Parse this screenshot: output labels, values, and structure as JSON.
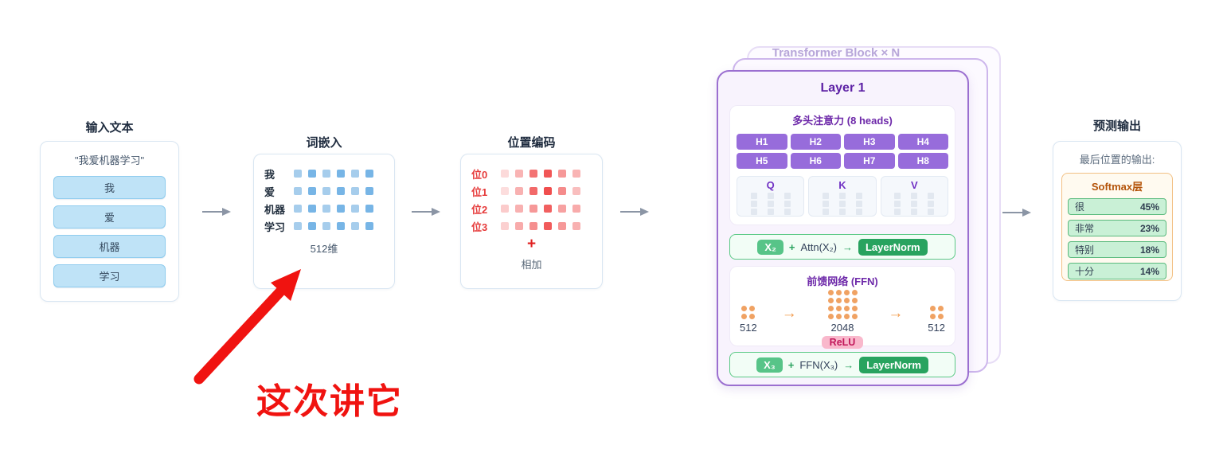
{
  "panels": {
    "input": {
      "title": "输入文本",
      "sentence": "\"我爱机器学习\"",
      "tokens": [
        "我",
        "爱",
        "机器",
        "学习"
      ]
    },
    "embedding": {
      "title": "词嵌入",
      "tokens": [
        "我",
        "爱",
        "机器",
        "学习"
      ],
      "cols": 6,
      "square_colors": [
        "#a6cdec",
        "#77b5e6"
      ],
      "dim_label": "512维"
    },
    "positional": {
      "title": "位置编码",
      "labels": [
        "位0",
        "位1",
        "位2",
        "位3"
      ],
      "base_color": "#ef4444",
      "opacities": [
        [
          0.2,
          0.4,
          0.75,
          0.9,
          0.55,
          0.4
        ],
        [
          0.18,
          0.42,
          0.8,
          0.95,
          0.62,
          0.35
        ],
        [
          0.28,
          0.42,
          0.55,
          0.85,
          0.5,
          0.45
        ],
        [
          0.25,
          0.45,
          0.6,
          0.88,
          0.55,
          0.42
        ]
      ],
      "plus": "+",
      "caption": "相加"
    },
    "transformer": {
      "stack_label": "Transformer Block × N",
      "layer_title": "Layer 1",
      "attention": {
        "title": "多头注意力 (8 heads)",
        "heads": [
          "H1",
          "H2",
          "H3",
          "H4",
          "H5",
          "H6",
          "H7",
          "H8"
        ],
        "qkv": [
          "Q",
          "K",
          "V"
        ]
      },
      "residual1": {
        "input": "X₂",
        "plus": "+",
        "term": "Attn(X₂)",
        "arrow": "→",
        "norm": "LayerNorm"
      },
      "ffn": {
        "title": "前馈网络 (FFN)",
        "in": {
          "rows": 2,
          "cols": 2,
          "label": "512"
        },
        "hidden": {
          "rows": 4,
          "cols": 4,
          "label": "2048"
        },
        "out": {
          "rows": 2,
          "cols": 2,
          "label": "512"
        },
        "arrow": "→",
        "activation": "ReLU"
      },
      "residual2": {
        "input": "X₃",
        "plus": "+",
        "term": "FFN(X₃)",
        "arrow": "→",
        "norm": "LayerNorm"
      }
    },
    "output": {
      "title": "预测输出",
      "subtitle": "最后位置的输出:",
      "softmax_label": "Softmax层",
      "predictions": [
        {
          "token": "很",
          "prob": "45%"
        },
        {
          "token": "非常",
          "prob": "23%"
        },
        {
          "token": "特别",
          "prob": "18%"
        },
        {
          "token": "十分",
          "prob": "14%"
        }
      ]
    }
  },
  "annotation": {
    "text": "这次讲它",
    "color": "#f01310"
  },
  "colors": {
    "flow_arrow": "#8b95a5",
    "head_chip": "#976cdb",
    "green_border": "#5bc985",
    "front_border": "#9b6fd0",
    "relu_bg": "#f9b8cc",
    "softmax_border": "#f2c083"
  }
}
